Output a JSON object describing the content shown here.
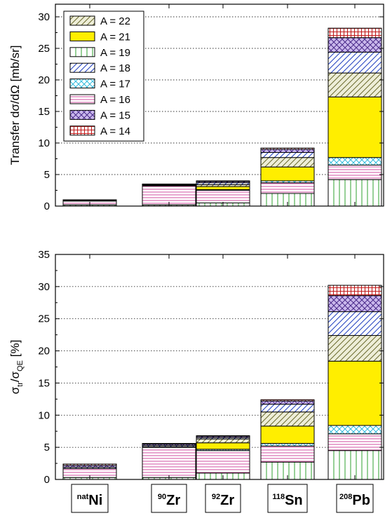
{
  "chart_data": [
    {
      "type": "bar",
      "stacked": true,
      "categories": [
        "Ni",
        "Zr",
        "Zr",
        "Sn",
        "Pb"
      ],
      "category_mass_numbers": [
        "nat",
        "90",
        "92",
        "118",
        "208"
      ],
      "ylabel": "Transfer dσ/dΩ [mb/sr]",
      "ylim": [
        0,
        32
      ],
      "yticks": [
        0,
        5,
        10,
        15,
        20,
        25,
        30
      ],
      "grid": "horizontal dotted",
      "legend": "top-left",
      "series": [
        {
          "name": "A = 19",
          "values": [
            0.2,
            0.2,
            0.5,
            2.0,
            4.2
          ]
        },
        {
          "name": "A = 16",
          "values": [
            0.6,
            3.0,
            2.0,
            1.7,
            2.3
          ]
        },
        {
          "name": "A = 17",
          "values": [
            0.0,
            0.0,
            0.1,
            0.3,
            1.2
          ]
        },
        {
          "name": "A = 21",
          "values": [
            0.0,
            0.0,
            0.5,
            2.2,
            9.6
          ]
        },
        {
          "name": "A = 22",
          "values": [
            0.0,
            0.0,
            0.3,
            1.5,
            3.8
          ]
        },
        {
          "name": "A = 18",
          "values": [
            0.0,
            0.1,
            0.3,
            0.8,
            3.3
          ]
        },
        {
          "name": "A = 15",
          "values": [
            0.1,
            0.1,
            0.2,
            0.5,
            2.3
          ]
        },
        {
          "name": "A = 14",
          "values": [
            0.1,
            0.1,
            0.1,
            0.2,
            1.5
          ]
        }
      ]
    },
    {
      "type": "bar",
      "stacked": true,
      "categories": [
        "Ni",
        "Zr",
        "Zr",
        "Sn",
        "Pb"
      ],
      "category_mass_numbers": [
        "nat",
        "90",
        "92",
        "118",
        "208"
      ],
      "ylabel": "σtr/σQE [%]",
      "ylabel_parts": {
        "sigma": "σ",
        "sub_tr": "tr",
        "slash": "/",
        "sub_qe": "QE",
        "unit": " [%]"
      },
      "ylim": [
        0,
        35
      ],
      "yticks": [
        0,
        5,
        10,
        15,
        20,
        25,
        30,
        35
      ],
      "grid": "horizontal dotted",
      "series": [
        {
          "name": "A = 19",
          "values": [
            0.3,
            0.3,
            1.0,
            2.7,
            4.5
          ]
        },
        {
          "name": "A = 16",
          "values": [
            1.4,
            4.7,
            3.5,
            2.5,
            2.6
          ]
        },
        {
          "name": "A = 17",
          "values": [
            0.0,
            0.0,
            0.2,
            0.4,
            1.3
          ]
        },
        {
          "name": "A = 21",
          "values": [
            0.0,
            0.0,
            1.0,
            2.7,
            10.0
          ]
        },
        {
          "name": "A = 22",
          "values": [
            0.0,
            0.1,
            0.6,
            2.2,
            4.0
          ]
        },
        {
          "name": "A = 18",
          "values": [
            0.2,
            0.2,
            0.2,
            1.2,
            3.7
          ]
        },
        {
          "name": "A = 15",
          "values": [
            0.3,
            0.2,
            0.2,
            0.5,
            2.5
          ]
        },
        {
          "name": "A = 14",
          "values": [
            0.2,
            0.1,
            0.1,
            0.2,
            1.6
          ]
        }
      ]
    }
  ],
  "styles": {
    "A = 22": {
      "fill": "#eeeed8",
      "pattern": "diag-up",
      "stroke": "#6b6b2e"
    },
    "A = 21": {
      "fill": "#ffee00",
      "pattern": "solid",
      "stroke": "#000000"
    },
    "A = 19": {
      "fill": "#ffffff",
      "pattern": "vertical",
      "stroke": "#2fa02f"
    },
    "A = 18": {
      "fill": "#ffffff",
      "pattern": "diag-up",
      "stroke": "#1f3fbf"
    },
    "A = 17": {
      "fill": "#ffffff",
      "pattern": "diag-cross",
      "stroke": "#33bbdd"
    },
    "A = 16": {
      "fill": "#ffffff",
      "pattern": "horizontal",
      "stroke": "#d04fa0"
    },
    "A = 15": {
      "fill": "#cab8ec",
      "pattern": "diag-cross",
      "stroke": "#4a2a8a"
    },
    "A = 14": {
      "fill": "#ffffff",
      "pattern": "grid",
      "stroke": "#c01818"
    }
  },
  "legend_order": [
    "A = 22",
    "A = 21",
    "A = 19",
    "A = 18",
    "A = 17",
    "A = 16",
    "A = 15",
    "A = 14"
  ]
}
